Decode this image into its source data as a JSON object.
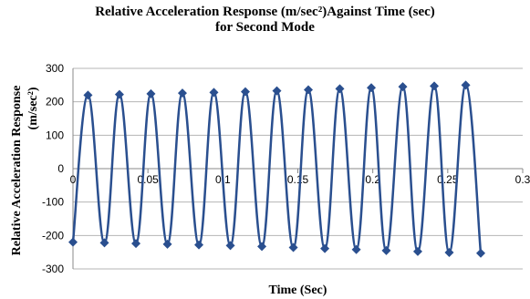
{
  "chart_data": {
    "type": "line",
    "title_line1": "Relative Acceleration Response (m/sec²)Against Time (sec)",
    "title_line2": "for Second Mode",
    "xlabel": "Time (Sec)",
    "ylabel_line1": "Relative Acceleration Response",
    "ylabel_line2": "(m/sec²)",
    "xlim": [
      0,
      0.3
    ],
    "ylim": [
      -300,
      300
    ],
    "x_ticks": [
      0,
      0.05,
      0.1,
      0.15,
      0.2,
      0.25,
      0.3
    ],
    "x_tick_labels": [
      "0",
      "0.05",
      "0.1",
      "0.15",
      "0.2",
      "0.25",
      "0.3"
    ],
    "y_ticks": [
      300,
      200,
      100,
      0,
      -100,
      -200,
      -300
    ],
    "y_tick_labels": [
      "300",
      "200",
      "100",
      "0",
      "-100",
      "-200",
      "-300"
    ],
    "grid": "horizontal",
    "line_color": "#2a4f8f",
    "marker": "diamond",
    "series": [
      {
        "x": [
          0,
          0.01,
          0.021,
          0.031,
          0.042,
          0.052,
          0.063,
          0.073,
          0.084,
          0.094,
          0.105,
          0.115,
          0.126,
          0.136,
          0.147,
          0.157,
          0.168,
          0.178,
          0.189,
          0.199,
          0.209,
          0.22,
          0.23,
          0.241,
          0.251,
          0.262,
          0.272
        ],
        "values": [
          -220,
          220,
          -222,
          222,
          -224,
          224,
          -226,
          226,
          -228,
          228,
          -230,
          230,
          -233,
          233,
          -236,
          236,
          -239,
          239,
          -242,
          242,
          -245,
          245,
          -248,
          247,
          -251,
          250,
          -253
        ]
      }
    ]
  }
}
